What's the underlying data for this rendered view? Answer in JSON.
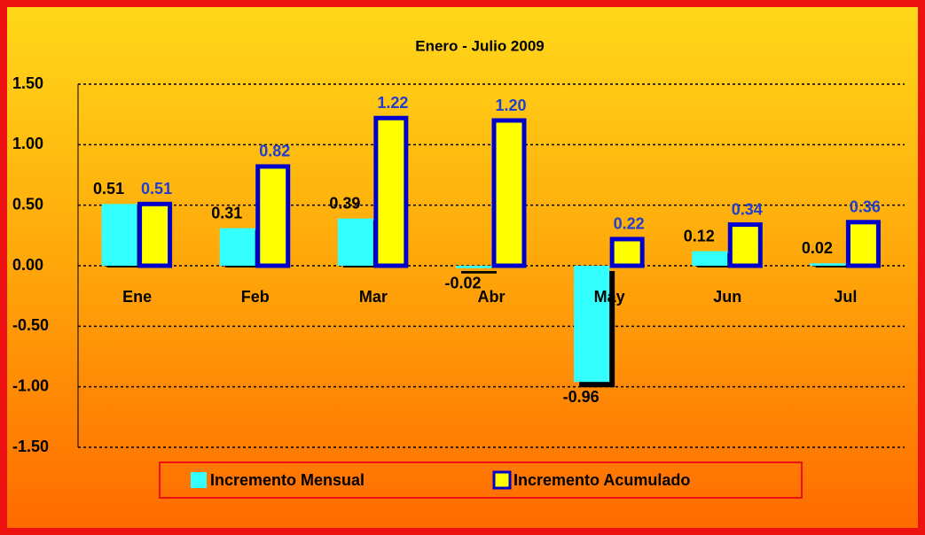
{
  "chart_data": {
    "type": "bar",
    "title": "Enero - Julio 2009",
    "categories": [
      "Ene",
      "Feb",
      "Mar",
      "Abr",
      "May",
      "Jun",
      "Jul"
    ],
    "series": [
      {
        "name": "Incremento Mensual",
        "color": "#33ffff",
        "label_color": "#000000",
        "values": [
          0.51,
          0.31,
          0.39,
          -0.02,
          -0.96,
          0.12,
          0.02
        ],
        "value_labels": [
          "0.51",
          "0.31",
          "0.39",
          "-0.02",
          "-0.96",
          "0.12",
          "0.02"
        ]
      },
      {
        "name": "Incremento Acumulado",
        "color": "#ffff00",
        "edgecolor": "#0000cc",
        "label_color": "#1f3fd0",
        "values": [
          0.51,
          0.82,
          1.22,
          1.2,
          0.22,
          0.34,
          0.36
        ],
        "value_labels": [
          "0.51",
          "0.82",
          "1.22",
          "1.20",
          "0.22",
          "0.34",
          "0.36"
        ]
      }
    ],
    "ylim": [
      -1.5,
      1.5
    ],
    "yticks": [
      {
        "value": 1.5,
        "label": "1.50"
      },
      {
        "value": 1,
        "label": "1.00"
      },
      {
        "value": 0.5,
        "label": "0.50"
      },
      {
        "value": 0,
        "label": "0.00"
      },
      {
        "value": -0.5,
        "label": "-0.50"
      },
      {
        "value": -1,
        "label": "-1.00"
      },
      {
        "value": -1.5,
        "label": "-1.50"
      }
    ],
    "grid": true,
    "legend": "bottom"
  }
}
